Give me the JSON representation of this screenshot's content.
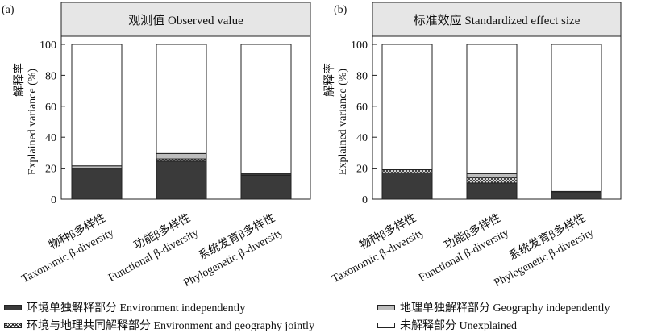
{
  "colors": {
    "env": "#3a3a3a",
    "joint_bg": "#ffffff",
    "joint_dot": "#2a2a2a",
    "geo": "#bdbdbd",
    "unexplained": "#ffffff",
    "header_bg": "#e6e6e6"
  },
  "legend": [
    {
      "key": "env",
      "label": "环境单独解释部分 Environment independently"
    },
    {
      "key": "geo",
      "label": "地理单独解释部分 Geography independently"
    },
    {
      "key": "joint",
      "label": "环境与地理共同解释部分 Environment and geography jointly"
    },
    {
      "key": "unexplained",
      "label": "未解释部分 Unexplained"
    }
  ],
  "chart_data": [
    {
      "type": "bar",
      "stacked": true,
      "panel_label": "(a)",
      "title": "观测值 Observed value",
      "ylabel_cn": "解释率",
      "ylabel_en": "Explained variance (%)",
      "ylim": [
        0,
        100
      ],
      "yticks": [
        0,
        20,
        40,
        60,
        80,
        100
      ],
      "categories": [
        {
          "cn": "物种β多样性",
          "en": "Taxonomic β-diversity"
        },
        {
          "cn": "功能β多样性",
          "en": "Functional β-diversity"
        },
        {
          "cn": "系统发育β多样性",
          "en": "Phylogenetic β-diversity"
        }
      ],
      "series": [
        {
          "key": "env",
          "values": [
            19.5,
            24.5,
            15.5
          ]
        },
        {
          "key": "joint",
          "values": [
            0.5,
            1.5,
            0.3
          ]
        },
        {
          "key": "geo",
          "values": [
            1.5,
            3.5,
            0.7
          ]
        },
        {
          "key": "unexplained",
          "values": [
            78.5,
            70.5,
            83.5
          ]
        }
      ]
    },
    {
      "type": "bar",
      "stacked": true,
      "panel_label": "(b)",
      "title": "标准效应 Standardized effect size",
      "ylabel_cn": "解释率",
      "ylabel_en": "Explained variance (%)",
      "ylim": [
        0,
        100
      ],
      "yticks": [
        0,
        20,
        40,
        60,
        80,
        100
      ],
      "categories": [
        {
          "cn": "物种β多样性",
          "en": "Taxonomic β-diversity"
        },
        {
          "cn": "功能β多样性",
          "en": "Functional β-diversity"
        },
        {
          "cn": "系统发育β多样性",
          "en": "Phylogenetic β-diversity"
        }
      ],
      "series": [
        {
          "key": "env",
          "values": [
            17.0,
            10.5,
            4.8
          ]
        },
        {
          "key": "joint",
          "values": [
            2.0,
            3.5,
            0.0
          ]
        },
        {
          "key": "geo",
          "values": [
            0.5,
            2.5,
            0.2
          ]
        },
        {
          "key": "unexplained",
          "values": [
            80.5,
            83.5,
            95.0
          ]
        }
      ]
    }
  ]
}
